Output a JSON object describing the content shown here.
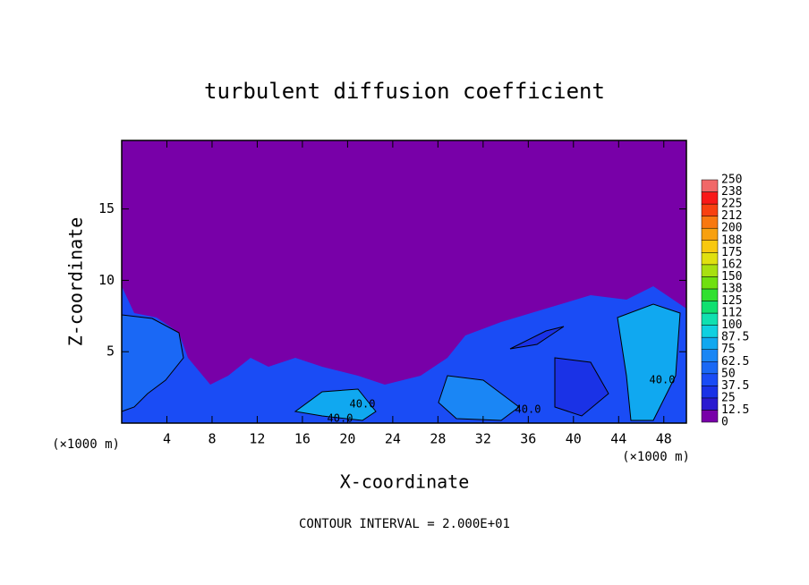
{
  "chart_data": {
    "type": "contour",
    "title": "turbulent diffusion coefficient",
    "x_label": "X-coordinate",
    "y_label": "Z-coordinate",
    "x_unit": "(×1000 m)",
    "y_unit": "(×1000 m)",
    "footnote": "CONTOUR INTERVAL = 2.000E+01",
    "xlim": [
      0,
      50
    ],
    "ylim": [
      0,
      19.8
    ],
    "xticks": [
      4,
      8,
      12,
      16,
      20,
      24,
      28,
      32,
      36,
      40,
      44,
      48
    ],
    "yticks": [
      5,
      10,
      15
    ],
    "contour_labels": [
      "40.0",
      "40.0",
      "40.0",
      "40.0"
    ],
    "colorbar": {
      "levels": [
        0,
        12.5,
        25,
        37.5,
        50,
        62.5,
        75,
        87.5,
        100,
        112,
        125,
        138,
        150,
        162,
        175,
        188,
        200,
        212,
        225,
        238,
        250
      ],
      "colors": [
        "#7800a8",
        "#2a1ad0",
        "#1a32e6",
        "#1a4cf5",
        "#1a68f5",
        "#1a86f5",
        "#10a8f0",
        "#10d0e0",
        "#10e0b0",
        "#10e070",
        "#30e030",
        "#70e010",
        "#a8e010",
        "#e0e010",
        "#f8c810",
        "#f8a010",
        "#f87810",
        "#f84010",
        "#f81818",
        "#f06868"
      ]
    }
  }
}
